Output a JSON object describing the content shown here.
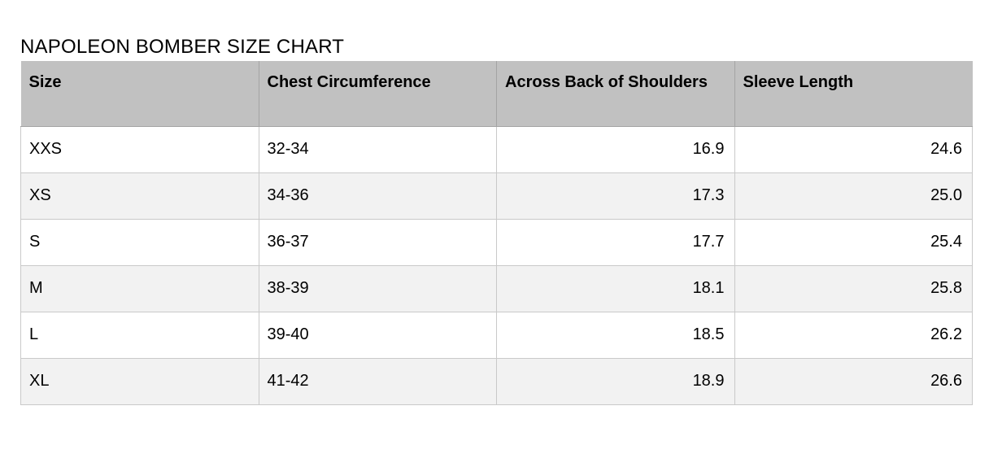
{
  "chart_data": {
    "type": "table",
    "title": "NAPOLEON BOMBER SIZE CHART",
    "columns": [
      "Size",
      "Chest Circumference",
      "Across Back of Shoulders",
      "Sleeve Length"
    ],
    "rows": [
      [
        "XXS",
        "32-34",
        "16.9",
        "24.6"
      ],
      [
        "XS",
        "34-36",
        "17.3",
        "25.0"
      ],
      [
        "S",
        "36-37",
        "17.7",
        "25.4"
      ],
      [
        "M",
        "38-39",
        "18.1",
        "25.8"
      ],
      [
        "L",
        "39-40",
        "18.5",
        "26.2"
      ],
      [
        "XL",
        "41-42",
        "18.9",
        "26.6"
      ]
    ],
    "layout_hints": {
      "numeric_columns_right_aligned": [
        2,
        3
      ],
      "alternating_row_shading": true
    }
  },
  "colors": {
    "header_background": "#c1c1c1",
    "header_divider": "#a4a4a4",
    "row_alternate_background": "#f2f2f2",
    "body_border": "#c9c9c9",
    "text": "#000000",
    "page_background": "#ffffff"
  }
}
